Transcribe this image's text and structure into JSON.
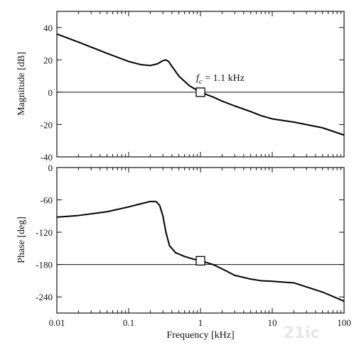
{
  "chart_data": [
    {
      "type": "line",
      "ylabel": "Magnitude [dB]",
      "xlabel": "",
      "xscale": "log",
      "xlim": [
        0.01,
        100
      ],
      "ylim": [
        -40,
        50
      ],
      "yticks": [
        40,
        20,
        0,
        -20,
        -40
      ],
      "ytick_labels": [
        "40",
        "20",
        "0",
        "-20",
        "-40"
      ],
      "reference_line": 0,
      "annotation": {
        "prefix": "f",
        "subscript": "c",
        "suffix": " = 1.1 kHz",
        "x": 1,
        "y": 0
      },
      "series": [
        {
          "x": [
            0.01,
            0.02,
            0.05,
            0.1,
            0.15,
            0.2,
            0.25,
            0.3,
            0.33,
            0.36,
            0.4,
            0.5,
            0.7,
            1.0,
            1.5,
            2,
            3,
            5,
            7,
            10,
            20,
            50,
            100
          ],
          "values": [
            36,
            31,
            24,
            19,
            17,
            16.5,
            17.5,
            19.5,
            20,
            19,
            16,
            10,
            4,
            0,
            -3,
            -5.5,
            -8.5,
            -12,
            -14.5,
            -16.5,
            -18.5,
            -22,
            -26.5
          ]
        }
      ]
    },
    {
      "type": "line",
      "ylabel": "Phase [deg]",
      "xlabel": "Frequency [kHz]",
      "xscale": "log",
      "xlim": [
        0.01,
        100
      ],
      "ylim": [
        -270,
        0
      ],
      "xticks": [
        0.01,
        0.1,
        1,
        10,
        100
      ],
      "xtick_labels": [
        "0.01",
        "0.1",
        "1",
        "10",
        "100"
      ],
      "yticks": [
        0,
        -60,
        -120,
        -180,
        -240
      ],
      "ytick_labels": [
        "0",
        "-60",
        "-120",
        "-180",
        "-240"
      ],
      "reference_line": -180,
      "marker": {
        "x": 1,
        "y": -173
      },
      "series": [
        {
          "x": [
            0.01,
            0.02,
            0.05,
            0.1,
            0.15,
            0.2,
            0.24,
            0.27,
            0.3,
            0.33,
            0.37,
            0.45,
            0.6,
            0.8,
            1.0,
            1.5,
            2,
            3,
            5,
            7,
            10,
            20,
            50,
            100
          ],
          "values": [
            -92,
            -89,
            -82,
            -73,
            -67,
            -63,
            -63,
            -70,
            -90,
            -120,
            -145,
            -158,
            -165,
            -170,
            -173,
            -180,
            -188,
            -200,
            -207,
            -210,
            -211,
            -214,
            -231,
            -248
          ]
        }
      ]
    }
  ],
  "watermark": "21ic"
}
